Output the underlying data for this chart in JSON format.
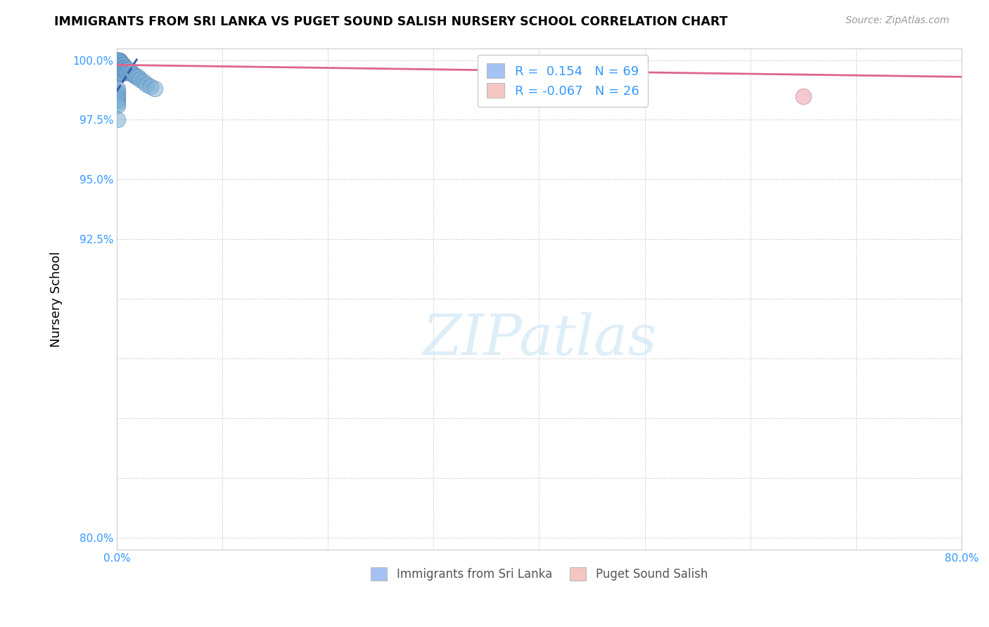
{
  "title": "IMMIGRANTS FROM SRI LANKA VS PUGET SOUND SALISH NURSERY SCHOOL CORRELATION CHART",
  "source": "Source: ZipAtlas.com",
  "ylabel": "Nursery School",
  "x_min": 0.0,
  "x_max": 0.8,
  "y_min": 0.795,
  "y_max": 1.005,
  "x_ticks": [
    0.0,
    0.1,
    0.2,
    0.3,
    0.4,
    0.5,
    0.6,
    0.7,
    0.8
  ],
  "x_tick_labels": [
    "0.0%",
    "",
    "",
    "",
    "",
    "",
    "",
    "",
    "80.0%"
  ],
  "y_ticks": [
    0.8,
    0.825,
    0.85,
    0.875,
    0.9,
    0.925,
    0.95,
    0.975,
    1.0
  ],
  "y_tick_labels": [
    "80.0%",
    "",
    "",
    "",
    "",
    "92.5%",
    "95.0%",
    "97.5%",
    "100.0%"
  ],
  "blue_dot_color": "#7bafd4",
  "pink_dot_color": "#e8a0a8",
  "blue_edge_color": "#5588bb",
  "pink_edge_color": "#cc7788",
  "blue_line_color": "#3355aa",
  "pink_line_color": "#dd6688",
  "legend_blue_color": "#a4c2f4",
  "legend_pink_color": "#f4c7c3",
  "R_blue": 0.154,
  "N_blue": 69,
  "R_pink": -0.067,
  "N_pink": 26,
  "watermark": "ZIPatlas",
  "legend_label_blue": "Immigrants from Sri Lanka",
  "legend_label_pink": "Puget Sound Salish",
  "blue_x": [
    0.001,
    0.001,
    0.001,
    0.001,
    0.001,
    0.001,
    0.001,
    0.001,
    0.001,
    0.001,
    0.002,
    0.002,
    0.002,
    0.002,
    0.002,
    0.002,
    0.002,
    0.002,
    0.002,
    0.002,
    0.003,
    0.003,
    0.003,
    0.003,
    0.003,
    0.003,
    0.003,
    0.004,
    0.004,
    0.004,
    0.004,
    0.004,
    0.005,
    0.005,
    0.005,
    0.005,
    0.006,
    0.006,
    0.006,
    0.007,
    0.007,
    0.008,
    0.008,
    0.009,
    0.009,
    0.01,
    0.01,
    0.011,
    0.012,
    0.013,
    0.014,
    0.015,
    0.016,
    0.018,
    0.02,
    0.022,
    0.025,
    0.028,
    0.032,
    0.036,
    0.001,
    0.001,
    0.001,
    0.001,
    0.001,
    0.001,
    0.001,
    0.001,
    0.001
  ],
  "blue_y": [
    1.0,
    1.0,
    1.0,
    1.0,
    1.0,
    1.0,
    0.999,
    0.999,
    0.998,
    0.997,
    1.0,
    1.0,
    0.999,
    0.999,
    0.998,
    0.998,
    0.997,
    0.996,
    0.995,
    0.994,
    1.0,
    0.999,
    0.998,
    0.997,
    0.996,
    0.995,
    0.994,
    0.999,
    0.998,
    0.997,
    0.996,
    0.995,
    0.998,
    0.997,
    0.996,
    0.995,
    0.998,
    0.997,
    0.996,
    0.997,
    0.996,
    0.997,
    0.996,
    0.996,
    0.995,
    0.996,
    0.995,
    0.996,
    0.995,
    0.995,
    0.995,
    0.994,
    0.994,
    0.993,
    0.993,
    0.992,
    0.991,
    0.99,
    0.989,
    0.988,
    0.988,
    0.987,
    0.986,
    0.985,
    0.984,
    0.983,
    0.982,
    0.981,
    0.975
  ],
  "pink_x": [
    0.001,
    0.001,
    0.001,
    0.001,
    0.001,
    0.002,
    0.002,
    0.002,
    0.002,
    0.002,
    0.003,
    0.003,
    0.003,
    0.003,
    0.004,
    0.004,
    0.004,
    0.005,
    0.005,
    0.006,
    0.006,
    0.007,
    0.008,
    0.009,
    0.45,
    0.65
  ],
  "pink_y": [
    1.0,
    1.0,
    1.0,
    0.999,
    0.998,
    1.0,
    0.999,
    0.998,
    0.997,
    0.996,
    1.0,
    0.999,
    0.998,
    0.997,
    0.999,
    0.998,
    0.997,
    0.998,
    0.997,
    0.998,
    0.997,
    0.997,
    0.996,
    0.996,
    0.999,
    0.985
  ],
  "blue_line_x": [
    0.0,
    0.02
  ],
  "blue_line_y": [
    0.987,
    1.001
  ],
  "pink_line_x": [
    0.0,
    0.8
  ],
  "pink_line_y": [
    0.998,
    0.993
  ]
}
